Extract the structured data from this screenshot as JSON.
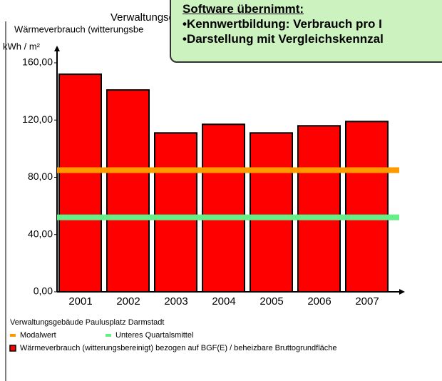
{
  "chart_data": {
    "type": "bar",
    "title": "Verwaltungsg",
    "subtitle": "Wärmeverbrauch (witterungsbe",
    "y_label": "kWh / m²",
    "categories": [
      "2001",
      "2002",
      "2003",
      "2004",
      "2005",
      "2006",
      "2007"
    ],
    "series": [
      {
        "name": "Wärmeverbrauch (witterungsbereinigt) bezogen auf BGF(E) / beheizbare Bruttogrundfläche",
        "color": "#ff0000",
        "values": [
          152,
          141,
          111,
          117,
          111,
          116,
          119
        ]
      }
    ],
    "reference_lines": [
      {
        "name": "Modalwert",
        "color": "#ff9900",
        "value": 85
      },
      {
        "name": "Unteres Quartalsmittel",
        "color": "#66ee88",
        "value": 52
      }
    ],
    "legend_title": "Verwaltungsgebäude Paulusplatz Darmstadt",
    "ylim": [
      0,
      160
    ],
    "yticks": [
      {
        "value": 0,
        "label": "0,00"
      },
      {
        "value": 40,
        "label": "40,00"
      },
      {
        "value": 80,
        "label": "80,00"
      },
      {
        "value": 120,
        "label": "120,00"
      },
      {
        "value": 160,
        "label": "160,00"
      }
    ]
  },
  "callout": {
    "heading": "Software übernimmt:",
    "items": [
      "•Kennwertbildung: Verbrauch pro I",
      "•Darstellung mit Vergleichskennzal"
    ]
  }
}
